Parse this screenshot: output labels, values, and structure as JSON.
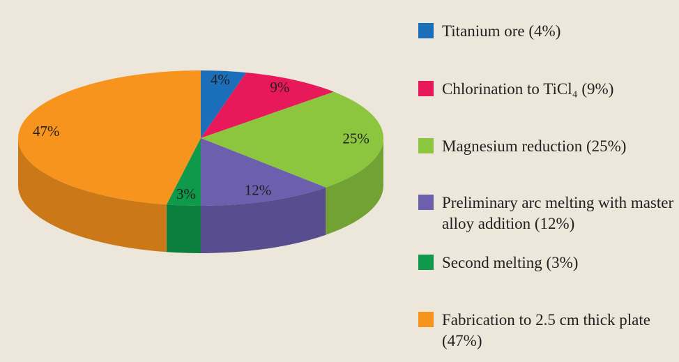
{
  "chart_data": {
    "type": "pie3d",
    "categories": [
      "Titanium ore (4%)",
      "Chlorination to TiCl₄ (9%)",
      "Magnesium reduction (25%)",
      "Preliminary arc melting with master alloy addition (12%)",
      "Second melting (3%)",
      "Fabrication to 2.5 cm thick plate (47%)"
    ],
    "values": [
      4,
      9,
      25,
      12,
      3,
      47
    ],
    "value_labels": [
      "4%",
      "9%",
      "25%",
      "12%",
      "3%",
      "47%"
    ],
    "colors": [
      "#1b6fba",
      "#e8195b",
      "#8cc63f",
      "#6b5fae",
      "#0f9a4b",
      "#f7941d"
    ],
    "legend": "right"
  }
}
